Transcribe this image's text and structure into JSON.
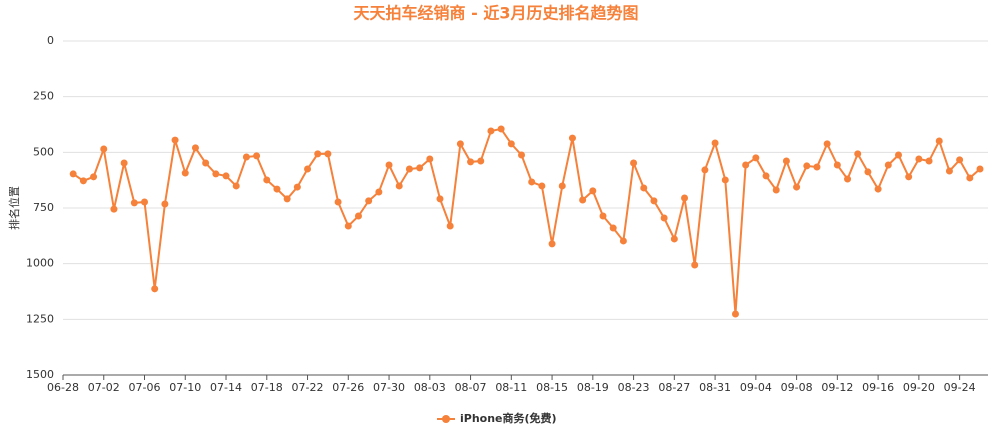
{
  "chart_data": {
    "type": "line",
    "title": "天天拍车经销商 - 近3月历史排名趋势图",
    "y_label": "排名位置",
    "categories": [
      "06-28",
      null,
      null,
      null,
      "07-02",
      null,
      null,
      null,
      "07-06",
      null,
      null,
      null,
      "07-10",
      null,
      null,
      null,
      "07-14",
      null,
      null,
      null,
      "07-18",
      null,
      null,
      null,
      "07-22",
      null,
      null,
      null,
      "07-26",
      null,
      null,
      null,
      "07-30",
      null,
      null,
      null,
      "08-03",
      null,
      null,
      null,
      "08-07",
      null,
      null,
      null,
      "08-11",
      null,
      null,
      null,
      "08-15",
      null,
      null,
      null,
      "08-19",
      null,
      null,
      null,
      "08-23",
      null,
      null,
      null,
      "08-27",
      null,
      null,
      null,
      "08-31",
      null,
      null,
      null,
      "09-04",
      null,
      null,
      null,
      "09-08",
      null,
      null,
      null,
      "09-12",
      null,
      null,
      null,
      "09-16",
      null,
      null,
      null,
      "09-20",
      null,
      null,
      null,
      "09-24",
      null,
      null
    ],
    "series": [
      {
        "name": "iPhone商务(免费)",
        "color": "#f5813a",
        "values": [
          null,
          597,
          628,
          610,
          485,
          755,
          548,
          727,
          723,
          1113,
          732,
          445,
          593,
          480,
          548,
          597,
          606,
          651,
          521,
          516,
          624,
          665,
          709,
          656,
          575,
          507,
          507,
          723,
          831,
          786,
          718,
          678,
          557,
          651,
          575,
          570,
          530,
          709,
          831,
          462,
          543,
          539,
          404,
          395,
          462,
          512,
          633,
          651,
          911,
          651,
          436,
          714,
          673,
          786,
          840,
          898,
          548,
          660,
          718,
          795,
          889,
          705,
          1006,
          579,
          458,
          624,
          1226,
          557,
          525,
          606,
          669,
          539,
          656,
          561,
          566,
          462,
          557,
          620,
          507,
          588,
          665,
          557,
          512,
          610,
          530,
          539,
          449,
          584,
          534,
          615,
          575
        ]
      }
    ],
    "ylim": [
      0,
      1500
    ],
    "y_inverted": true,
    "yticks": [
      0,
      250,
      500,
      750,
      1000,
      1250,
      1500
    ],
    "grid": true,
    "legend": "bottom"
  }
}
